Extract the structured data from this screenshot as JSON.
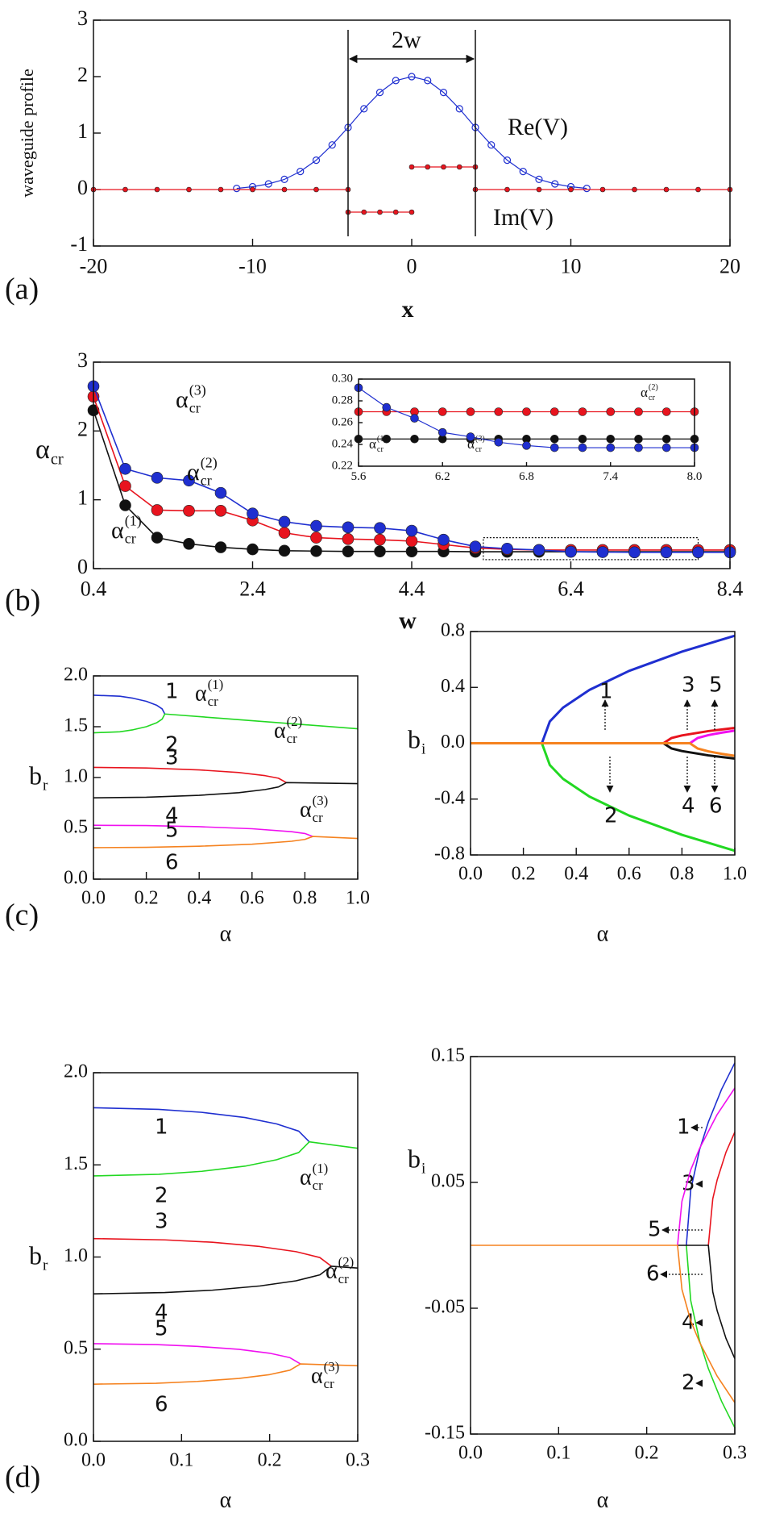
{
  "chart_data": [
    {
      "type": "line",
      "markers": true,
      "panel_label": "(a)",
      "xlabel": "x",
      "ylabel": "waveguide profile",
      "xlim": [
        -20,
        20
      ],
      "xticks": [
        -20,
        -10,
        0,
        10,
        20
      ],
      "ylim": [
        -1,
        3
      ],
      "yticks": [
        -1,
        0,
        1,
        2,
        3
      ],
      "vlines": [
        -4,
        4
      ],
      "annotations": [
        "2w",
        "Re(V)",
        "Im(V)"
      ],
      "series": [
        {
          "color": "#1f2fd0",
          "x": [
            -11,
            -10,
            -9,
            -8,
            -7,
            -6,
            -5,
            -4,
            -3,
            -2,
            -1,
            0,
            1,
            2,
            3,
            4,
            5,
            6,
            7,
            8,
            9,
            10,
            11
          ],
          "values": [
            0.02,
            0.05,
            0.1,
            0.18,
            0.32,
            0.52,
            0.79,
            1.1,
            1.43,
            1.72,
            1.93,
            2,
            1.93,
            1.72,
            1.43,
            1.1,
            0.79,
            0.52,
            0.32,
            0.18,
            0.1,
            0.05,
            0.02
          ]
        },
        {
          "color": "#e8141e",
          "x": [
            -20,
            -18,
            -16,
            -14,
            -12,
            -10,
            -8,
            -6,
            -4,
            -4,
            -4,
            -3,
            -2,
            -1,
            0,
            0,
            0,
            1,
            2,
            3,
            4,
            4,
            4,
            6,
            8,
            10,
            12,
            14,
            16,
            18,
            20
          ],
          "values": [
            0,
            0,
            0,
            0,
            0,
            0,
            0,
            0,
            0,
            null,
            -0.4,
            -0.4,
            -0.4,
            -0.4,
            -0.4,
            null,
            0.4,
            0.4,
            0.4,
            0.4,
            0.4,
            null,
            0,
            0,
            0,
            0,
            0,
            0,
            0,
            0,
            0
          ]
        }
      ]
    },
    {
      "type": "line",
      "markers": true,
      "panel_label": "(b)",
      "xlabel": "w",
      "ylabel": {
        "base": "α",
        "sub": "cr"
      },
      "xlim": [
        0.4,
        8.4
      ],
      "xticks": [
        0.4,
        2.4,
        4.4,
        6.4,
        8.4
      ],
      "ylim": [
        0,
        3
      ],
      "yticks": [
        0,
        1,
        2,
        3
      ],
      "zoom_box": {
        "x": [
          5.3,
          8.0
        ],
        "y": [
          0.13,
          0.45
        ]
      },
      "annotations": [
        {
          "base": "α",
          "sub": "cr",
          "sup": "(3)"
        },
        {
          "base": "α",
          "sub": "cr",
          "sup": "(2)"
        },
        {
          "base": "α",
          "sub": "cr",
          "sup": "(1)"
        }
      ],
      "x": [
        0.4,
        0.8,
        1.2,
        1.6,
        2.0,
        2.4,
        2.8,
        3.2,
        3.6,
        4.0,
        4.4,
        4.8,
        5.2,
        5.6,
        6.0,
        6.4,
        6.8,
        7.2,
        7.6,
        8.0,
        8.4
      ],
      "series": [
        {
          "color": "#111111",
          "values": [
            2.3,
            0.92,
            0.45,
            0.36,
            0.31,
            0.28,
            0.26,
            0.255,
            0.25,
            0.25,
            0.25,
            0.25,
            0.245,
            0.245,
            0.245,
            0.245,
            0.245,
            0.245,
            0.245,
            0.245,
            0.245
          ]
        },
        {
          "color": "#e8141e",
          "values": [
            2.5,
            1.2,
            0.85,
            0.84,
            0.84,
            0.7,
            0.52,
            0.45,
            0.43,
            0.42,
            0.4,
            0.35,
            0.3,
            0.28,
            0.27,
            0.27,
            0.27,
            0.27,
            0.27,
            0.27,
            0.27
          ]
        },
        {
          "color": "#1f2fd0",
          "values": [
            2.65,
            1.45,
            1.32,
            1.28,
            1.1,
            0.8,
            0.68,
            0.62,
            0.6,
            0.59,
            0.55,
            0.42,
            0.32,
            0.29,
            0.27,
            0.245,
            0.24,
            0.237,
            0.237,
            0.237,
            0.237
          ]
        }
      ]
    },
    {
      "type": "line",
      "markers": true,
      "xlim": [
        5.6,
        8
      ],
      "xticks": [
        5.6,
        6.2,
        6.8,
        7.4,
        {
          "value": 8,
          "label": "8.0"
        }
      ],
      "ylim": [
        0.22,
        0.3
      ],
      "yticks": [
        0.22,
        0.24,
        0.26,
        0.28,
        {
          "value": 0.3,
          "label": "0.30"
        }
      ],
      "annotations": [
        {
          "base": "α",
          "sub": "cr",
          "sup": "(2)"
        },
        {
          "base": "α",
          "sub": "cr",
          "sup": "(1)"
        },
        {
          "base": "α",
          "sub": "cr",
          "sup": "(3)"
        }
      ],
      "x": [
        5.6,
        5.8,
        6.0,
        6.2,
        6.4,
        6.6,
        6.8,
        7.0,
        7.2,
        7.4,
        7.6,
        7.8,
        8.0
      ],
      "series": [
        {
          "color": "#111111",
          "values": [
            0.245,
            0.245,
            0.245,
            0.245,
            0.245,
            0.245,
            0.245,
            0.245,
            0.245,
            0.245,
            0.245,
            0.245,
            0.245
          ]
        },
        {
          "color": "#e8141e",
          "values": [
            0.27,
            0.27,
            0.27,
            0.27,
            0.27,
            0.27,
            0.27,
            0.27,
            0.27,
            0.27,
            0.27,
            0.27,
            0.27
          ]
        },
        {
          "color": "#1f2fd0",
          "values": [
            0.292,
            0.274,
            0.264,
            0.251,
            0.247,
            0.242,
            0.239,
            0.237,
            0.237,
            0.237,
            0.237,
            0.237,
            0.237
          ]
        }
      ]
    },
    {
      "type": "line",
      "panel_label": "(c)",
      "xlabel": "α",
      "ylabel": {
        "base": "b",
        "sub": "r"
      },
      "xlim": [
        0,
        1
      ],
      "xticks": [
        {
          "value": 0,
          "label": "0.0"
        },
        0.2,
        0.4,
        0.6,
        0.8,
        {
          "value": 1,
          "label": "1.0"
        }
      ],
      "ylim": [
        0,
        2
      ],
      "yticks": [
        {
          "value": 0,
          "label": "0.0"
        },
        0.5,
        {
          "value": 1,
          "label": "1.0"
        },
        1.5,
        {
          "value": 2,
          "label": "2.0"
        }
      ],
      "annotations": [
        {
          "base": "α",
          "sub": "cr",
          "sup": "(1)"
        },
        {
          "base": "α",
          "sub": "cr",
          "sup": "(2)"
        },
        {
          "base": "α",
          "sub": "cr",
          "sup": "(3)"
        }
      ],
      "series": [
        {
          "name": "1",
          "color": "#1f2fd0",
          "x": [
            0,
            0.1,
            0.15,
            0.2,
            0.24,
            0.26,
            0.27
          ],
          "values": [
            1.81,
            1.8,
            1.78,
            1.75,
            1.71,
            1.675,
            1.625
          ]
        },
        {
          "name": "2",
          "color": "#22d822",
          "x": [
            0,
            0.1,
            0.15,
            0.2,
            0.24,
            0.26,
            0.27,
            1.0
          ],
          "values": [
            1.44,
            1.45,
            1.47,
            1.5,
            1.54,
            1.575,
            1.625,
            1.48
          ]
        },
        {
          "name": "3",
          "color": "#e8141e",
          "x": [
            0,
            0.2,
            0.4,
            0.55,
            0.65,
            0.7,
            0.73
          ],
          "values": [
            1.1,
            1.094,
            1.075,
            1.049,
            1.018,
            0.993,
            0.95
          ]
        },
        {
          "name": "4",
          "color": "#111111",
          "x": [
            0,
            0.2,
            0.4,
            0.55,
            0.65,
            0.7,
            0.73,
            1.0
          ],
          "values": [
            0.8,
            0.806,
            0.825,
            0.851,
            0.882,
            0.907,
            0.95,
            0.94
          ]
        },
        {
          "name": "5",
          "color": "#f010f0",
          "x": [
            0,
            0.2,
            0.4,
            0.6,
            0.75,
            0.8,
            0.83
          ],
          "values": [
            0.53,
            0.527,
            0.516,
            0.496,
            0.467,
            0.449,
            0.42
          ]
        },
        {
          "name": "6",
          "color": "#f5821f",
          "x": [
            0,
            0.2,
            0.4,
            0.6,
            0.75,
            0.8,
            0.83,
            1.0
          ],
          "values": [
            0.31,
            0.313,
            0.324,
            0.344,
            0.373,
            0.391,
            0.42,
            0.4
          ]
        }
      ]
    },
    {
      "type": "line",
      "xlabel": "α",
      "ylabel": {
        "base": "b",
        "sub": "i"
      },
      "xlim": [
        0,
        1
      ],
      "xticks": [
        {
          "value": 0,
          "label": "0.0"
        },
        0.2,
        0.4,
        0.6,
        0.8,
        {
          "value": 1,
          "label": "1.0"
        }
      ],
      "ylim": [
        -0.8,
        0.8
      ],
      "yticks": [
        -0.8,
        -0.4,
        {
          "value": 0,
          "label": "0.0"
        },
        0.4,
        0.8
      ],
      "series": [
        {
          "name": "1",
          "color": "#1f2fd0",
          "x": [
            0.27,
            0.3,
            0.35,
            0.45,
            0.6,
            0.8,
            1.0
          ],
          "values": [
            0,
            0.156,
            0.255,
            0.382,
            0.518,
            0.656,
            0.77
          ]
        },
        {
          "name": "2",
          "color": "#22d822",
          "x": [
            0.27,
            0.3,
            0.35,
            0.45,
            0.6,
            0.8,
            1.0
          ],
          "values": [
            0,
            -0.156,
            -0.255,
            -0.382,
            -0.518,
            -0.656,
            -0.77
          ]
        },
        {
          "name": "3",
          "color": "#e8141e",
          "x": [
            0.73,
            0.76,
            0.8,
            0.9,
            1.0
          ],
          "values": [
            0,
            0.037,
            0.056,
            0.087,
            0.11
          ]
        },
        {
          "name": "4",
          "color": "#111111",
          "x": [
            0.73,
            0.76,
            0.8,
            0.9,
            1.0
          ],
          "values": [
            0,
            -0.037,
            -0.056,
            -0.087,
            -0.11
          ]
        },
        {
          "name": "5",
          "color": "#f010f0",
          "x": [
            0.83,
            0.86,
            0.9,
            0.95,
            1.0
          ],
          "values": [
            0,
            0.038,
            0.058,
            0.076,
            0.09
          ]
        },
        {
          "name": "6",
          "color": "#f5821f",
          "x": [
            0,
            0.83,
            0.86,
            0.9,
            0.95,
            1.0
          ],
          "values": [
            0,
            0,
            -0.038,
            -0.058,
            -0.076,
            -0.09
          ]
        }
      ]
    },
    {
      "type": "line",
      "panel_label": "(d)",
      "xlabel": "α",
      "ylabel": {
        "base": "b",
        "sub": "r"
      },
      "xlim": [
        0,
        0.3
      ],
      "xticks": [
        {
          "value": 0,
          "label": "0.0"
        },
        0.1,
        0.2,
        0.3
      ],
      "ylim": [
        0,
        2
      ],
      "yticks": [
        {
          "value": 0,
          "label": "0.0"
        },
        0.5,
        {
          "value": 1,
          "label": "1.0"
        },
        1.5,
        {
          "value": 2,
          "label": "2.0"
        }
      ],
      "annotations": [
        {
          "base": "α",
          "sub": "cr",
          "sup": "(1)"
        },
        {
          "base": "α",
          "sub": "cr",
          "sup": "(2)"
        },
        {
          "base": "α",
          "sub": "cr",
          "sup": "(3)"
        }
      ],
      "series": [
        {
          "name": "1",
          "color": "#1f2fd0",
          "x": [
            0,
            0.074,
            0.123,
            0.172,
            0.208,
            0.233,
            0.245
          ],
          "values": [
            1.81,
            1.801,
            1.785,
            1.757,
            1.722,
            1.683,
            1.625
          ]
        },
        {
          "name": "2",
          "color": "#22d822",
          "x": [
            0,
            0.074,
            0.123,
            0.172,
            0.208,
            0.233,
            0.245,
            0.3
          ],
          "values": [
            1.44,
            1.449,
            1.465,
            1.493,
            1.528,
            1.567,
            1.625,
            1.59
          ]
        },
        {
          "name": "3",
          "color": "#e8141e",
          "x": [
            0,
            0.081,
            0.135,
            0.189,
            0.23,
            0.257,
            0.27
          ],
          "values": [
            1.1,
            1.093,
            1.08,
            1.057,
            1.029,
            0.997,
            0.95
          ]
        },
        {
          "name": "4",
          "color": "#111111",
          "x": [
            0,
            0.081,
            0.135,
            0.189,
            0.23,
            0.257,
            0.27,
            0.3
          ],
          "values": [
            0.8,
            0.807,
            0.82,
            0.843,
            0.871,
            0.903,
            0.95,
            0.94
          ]
        },
        {
          "name": "5",
          "color": "#f010f0",
          "x": [
            0,
            0.071,
            0.118,
            0.165,
            0.2,
            0.223,
            0.235
          ],
          "values": [
            0.53,
            0.525,
            0.515,
            0.499,
            0.478,
            0.454,
            0.42
          ]
        },
        {
          "name": "6",
          "color": "#f5821f",
          "x": [
            0,
            0.071,
            0.118,
            0.165,
            0.2,
            0.223,
            0.235,
            0.3
          ],
          "values": [
            0.31,
            0.315,
            0.325,
            0.341,
            0.362,
            0.386,
            0.42,
            0.41
          ]
        }
      ]
    },
    {
      "type": "line",
      "xlabel": "α",
      "ylabel": {
        "base": "b",
        "sub": "i"
      },
      "xlim": [
        0,
        0.3
      ],
      "xticks": [
        {
          "value": 0,
          "label": "0.0"
        },
        0.1,
        0.2,
        0.3
      ],
      "ylim": [
        -0.15,
        0.15
      ],
      "yticks": [
        -0.15,
        -0.05,
        0.05,
        0.15
      ],
      "series": [
        {
          "name": "1",
          "color": "#1f2fd0",
          "x": [
            0.245,
            0.25,
            0.26,
            0.27,
            0.285,
            0.3
          ],
          "values": [
            0,
            0.044,
            0.076,
            0.098,
            0.124,
            0.145
          ]
        },
        {
          "name": "2",
          "color": "#22d822",
          "x": [
            0.245,
            0.25,
            0.26,
            0.27,
            0.285,
            0.3
          ],
          "values": [
            0,
            -0.044,
            -0.076,
            -0.098,
            -0.124,
            -0.145
          ]
        },
        {
          "name": "3",
          "color": "#e8141e",
          "x": [
            0.27,
            0.275,
            0.28,
            0.29,
            0.3
          ],
          "values": [
            0,
            0.037,
            0.052,
            0.074,
            0.09
          ]
        },
        {
          "name": "4",
          "color": "#111111",
          "x": [
            0.235,
            0.27,
            0.275,
            0.28,
            0.29,
            0.3
          ],
          "values": [
            0,
            0,
            -0.037,
            -0.052,
            -0.074,
            -0.09
          ]
        },
        {
          "name": "5",
          "color": "#f010f0",
          "x": [
            0.235,
            0.24,
            0.25,
            0.26,
            0.28,
            0.3
          ],
          "values": [
            0,
            0.035,
            0.06,
            0.077,
            0.104,
            0.125
          ]
        },
        {
          "name": "6",
          "color": "#f5821f",
          "x": [
            0,
            0.235,
            0.24,
            0.25,
            0.26,
            0.28,
            0.3
          ],
          "values": [
            0,
            0,
            -0.035,
            -0.06,
            -0.077,
            -0.104,
            -0.125
          ]
        }
      ]
    }
  ]
}
